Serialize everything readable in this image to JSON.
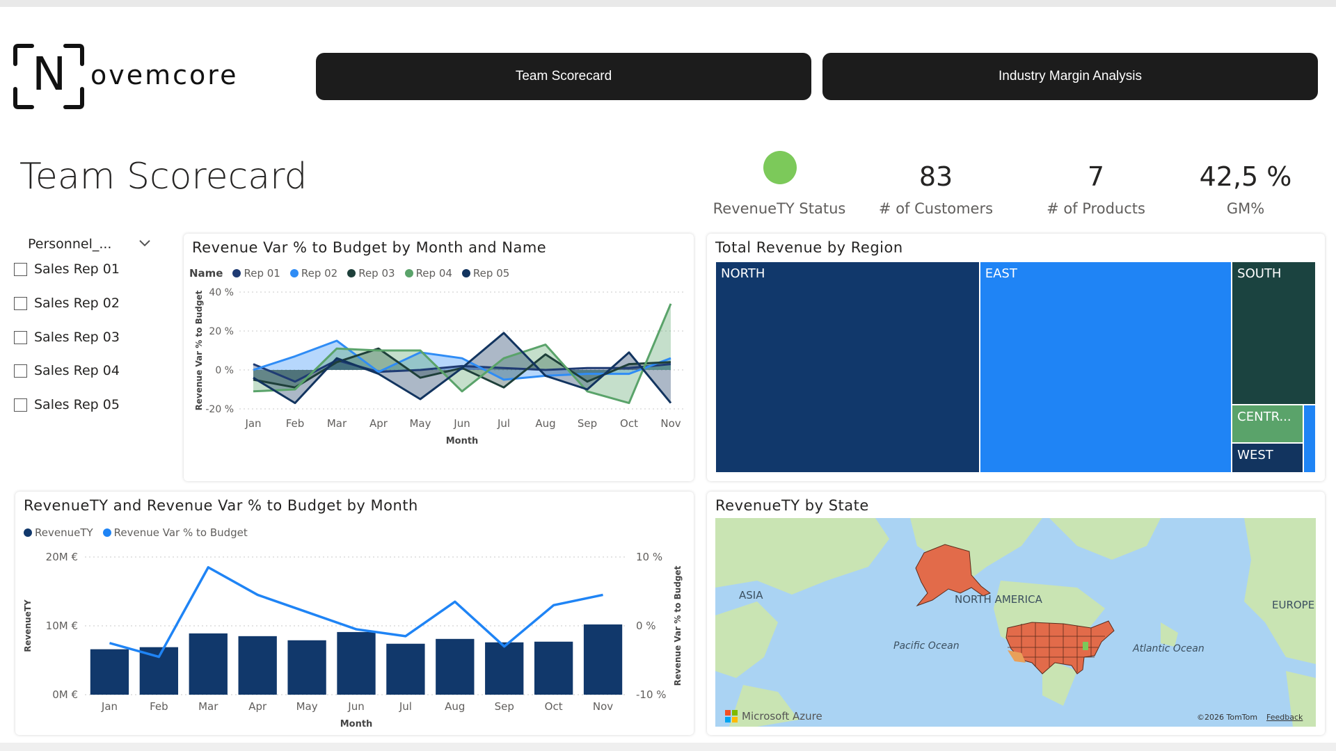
{
  "logo": {
    "text": "ovemcore",
    "letter": "N"
  },
  "nav": [
    {
      "label": "Team Scorecard"
    },
    {
      "label": "Industry Margin Analysis"
    }
  ],
  "page_title": "Team Scorecard",
  "kpis": {
    "status_label": "RevenueTY Status",
    "status_color": "#7cc95a",
    "customers": {
      "value": "83",
      "label": "# of Customers"
    },
    "products": {
      "value": "7",
      "label": "# of Products"
    },
    "gm": {
      "value": "42,5 %",
      "label": "GM%"
    }
  },
  "slicer": {
    "header": "Personnel_...",
    "items": [
      "Sales Rep 01",
      "Sales Rep 02",
      "Sales Rep 03",
      "Sales Rep 04",
      "Sales Rep 05"
    ]
  },
  "colors": {
    "rep01": "#1f3b73",
    "rep02": "#2f8cf5",
    "rep03": "#1e3f3a",
    "rep04": "#5aa36a",
    "rep05": "#12345f",
    "north": "#11386b",
    "east": "#1f84f5",
    "south": "#1b4340",
    "central": "#5aa36a",
    "west": "#12345f"
  },
  "chart_data": [
    {
      "type": "area",
      "title": "Revenue Var % to Budget by Month and Name",
      "legend_title": "Name",
      "xlabel": "Month",
      "ylabel": "Revenue Var % to Budget",
      "categories": [
        "Jan",
        "Feb",
        "Mar",
        "Apr",
        "May",
        "Jun",
        "Jul",
        "Aug",
        "Sep",
        "Oct",
        "Nov"
      ],
      "ylim": [
        -20,
        40
      ],
      "yticks": [
        "40 %",
        "20 %",
        "0 %",
        "-20 %"
      ],
      "ytick_values": [
        40,
        20,
        0,
        -20
      ],
      "series": [
        {
          "name": "Rep 01",
          "values": [
            3,
            -6,
            5,
            -1,
            0,
            2,
            1,
            0,
            1,
            1,
            3
          ]
        },
        {
          "name": "Rep 02",
          "values": [
            0,
            7,
            15,
            -1,
            9,
            6,
            -5,
            -3,
            -2,
            -2,
            6
          ]
        },
        {
          "name": "Rep 03",
          "values": [
            -5,
            -9,
            4,
            11,
            -4,
            1,
            -9,
            8,
            -6,
            3,
            4
          ]
        },
        {
          "name": "Rep 04",
          "values": [
            -11,
            -10,
            11,
            10,
            10,
            -11,
            6,
            13,
            -11,
            -17,
            34
          ]
        },
        {
          "name": "Rep 05",
          "values": [
            -4,
            -17,
            6,
            -2,
            -15,
            1,
            19,
            -3,
            -10,
            9,
            -17
          ]
        }
      ]
    },
    {
      "type": "treemap",
      "title": "Total Revenue by Region",
      "categories": [
        "NORTH",
        "EAST",
        "SOUTH",
        "CENTR...",
        "WEST"
      ],
      "values": [
        44,
        42,
        9.5,
        2.5,
        2
      ]
    },
    {
      "type": "bar",
      "title": "RevenueTY and Revenue Var % to Budget by Month",
      "xlabel": "Month",
      "ylabel": "RevenueTY",
      "ylabel_right": "Revenue Var % to Budget",
      "categories": [
        "Jan",
        "Feb",
        "Mar",
        "Apr",
        "May",
        "Jun",
        "Jul",
        "Aug",
        "Sep",
        "Oct",
        "Nov"
      ],
      "ylim": [
        0,
        20
      ],
      "yticks": [
        "20M €",
        "10M €",
        "0M €"
      ],
      "ytick_values": [
        20,
        10,
        0
      ],
      "ylim_right": [
        -10,
        10
      ],
      "yticks_right": [
        "10 %",
        "0 %",
        "-10 %"
      ],
      "ytick_values_right": [
        10,
        0,
        -10
      ],
      "series": [
        {
          "name": "RevenueTY",
          "unit": "M €",
          "values": [
            6.6,
            6.9,
            8.9,
            8.5,
            7.9,
            9.1,
            7.4,
            8.1,
            7.6,
            7.7,
            10.2
          ]
        },
        {
          "name": "Revenue Var % to Budget",
          "unit": "%",
          "values": [
            -2.5,
            -4.5,
            8.5,
            4.5,
            2,
            -0.5,
            -1.5,
            3.5,
            -3,
            3,
            4.5
          ]
        }
      ]
    }
  ],
  "map": {
    "title": "RevenueTY by State",
    "labels": {
      "asia": "ASIA",
      "north_america": "NORTH AMERICA",
      "europe": "EUROPE",
      "pacific": "Pacific Ocean",
      "atlantic": "Atlantic Ocean"
    },
    "brand": "Microsoft Azure",
    "copyright": "©2026 TomTom",
    "feedback": "Feedback",
    "colors": {
      "water": "#aad3f3",
      "land": "#c9e4b3",
      "state": "#e26b4a"
    }
  }
}
